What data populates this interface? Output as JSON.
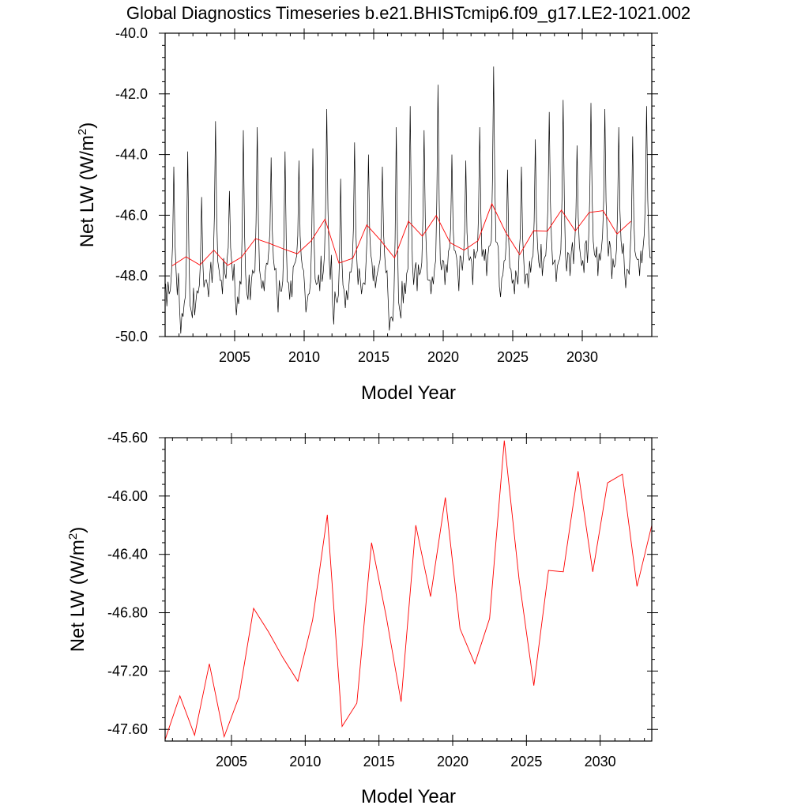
{
  "figure": {
    "title": "Global Diagnostics Timeseries b.e21.BHISTcmip6.f09_g17.LE2-1021.002",
    "colors": {
      "monthly": "#000000",
      "annual": "#ff0000"
    }
  },
  "chart_data": [
    {
      "type": "line",
      "name": "monthly-and-annual-netlw",
      "xlabel": "Model Year",
      "ylabel_main": "Net LW (W/m",
      "ylabel_sup": "2",
      "ylabel_end": ")",
      "xlim": [
        2000,
        2035
      ],
      "ylim": [
        -50.0,
        -40.0
      ],
      "xticks": [
        2005,
        2010,
        2015,
        2020,
        2025,
        2030
      ],
      "xtick_labels": [
        "2005",
        "2010",
        "2015",
        "2020",
        "2025",
        "2030"
      ],
      "yticks": [
        -50.0,
        -48.0,
        -46.0,
        -44.0,
        -42.0,
        -40.0
      ],
      "ytick_labels": [
        "-50.0",
        "-48.0",
        "-46.0",
        "-44.0",
        "-42.0",
        "-40.0"
      ],
      "series": [
        {
          "name": "monthly",
          "color": "#000000",
          "seasonal_peaks": {
            "years": [
              2000,
              2001,
              2002,
              2003,
              2004,
              2005,
              2006,
              2007,
              2008,
              2009,
              2010,
              2011,
              2012,
              2013,
              2014,
              2015,
              2016,
              2017,
              2018,
              2019,
              2020,
              2021,
              2022,
              2023,
              2024,
              2025,
              2026,
              2027,
              2028,
              2029,
              2030,
              2031,
              2032,
              2033,
              2034
            ],
            "max": [
              -44.4,
              -43.9,
              -45.4,
              -42.9,
              -45.2,
              -43.2,
              -43.1,
              -44.1,
              -43.9,
              -44.2,
              -43.8,
              -42.5,
              -44.8,
              -43.6,
              -44.0,
              -44.4,
              -43.1,
              -42.4,
              -43.2,
              -41.7,
              -44.0,
              -44.2,
              -43.1,
              -41.1,
              -44.5,
              -44.4,
              -43.5,
              -42.6,
              -42.2,
              -43.7,
              -42.3,
              -42.5,
              -43.1,
              -43.4,
              -42.4
            ],
            "min": [
              -49.0,
              -49.9,
              -49.3,
              -48.7,
              -48.6,
              -49.3,
              -48.8,
              -48.5,
              -49.2,
              -48.7,
              -49.2,
              -48.5,
              -49.6,
              -48.8,
              -48.6,
              -48.4,
              -49.8,
              -48.9,
              -48.5,
              -48.6,
              -48.3,
              -48.5,
              -48.3,
              -48.0,
              -48.7,
              -48.6,
              -48.4,
              -48.0,
              -48.2,
              -48.0,
              -47.9,
              -48.0,
              -48.1,
              -48.4,
              -48.0
            ]
          }
        },
        {
          "name": "annual",
          "color": "#ff0000",
          "x": [
            2000.5,
            2001.5,
            2002.5,
            2003.5,
            2004.5,
            2005.5,
            2006.5,
            2007.5,
            2008.5,
            2009.5,
            2010.5,
            2011.5,
            2012.5,
            2013.5,
            2014.5,
            2015.5,
            2016.5,
            2017.5,
            2018.5,
            2019.5,
            2020.5,
            2021.5,
            2022.5,
            2023.5,
            2024.5,
            2025.5,
            2026.5,
            2027.5,
            2028.5,
            2029.5,
            2030.5,
            2031.5,
            2032.5,
            2033.5
          ],
          "values": [
            -47.67,
            -47.37,
            -47.64,
            -47.15,
            -47.65,
            -47.38,
            -46.77,
            -46.93,
            -47.11,
            -47.27,
            -46.85,
            -46.13,
            -47.58,
            -47.42,
            -46.32,
            -46.83,
            -47.41,
            -46.2,
            -46.69,
            -46.01,
            -46.91,
            -47.15,
            -46.84,
            -45.62,
            -46.57,
            -47.3,
            -46.51,
            -46.52,
            -45.83,
            -46.52,
            -45.91,
            -45.85,
            -46.62,
            -46.2
          ]
        }
      ]
    },
    {
      "type": "line",
      "name": "annual-netlw",
      "xlabel": "Model Year",
      "ylabel_main": "Net LW (W/m",
      "ylabel_sup": "2",
      "ylabel_end": ")",
      "xlim": [
        2000.5,
        2033.5
      ],
      "ylim": [
        -47.68,
        -45.6
      ],
      "xticks": [
        2005,
        2010,
        2015,
        2020,
        2025,
        2030
      ],
      "xtick_labels": [
        "2005",
        "2010",
        "2015",
        "2020",
        "2025",
        "2030"
      ],
      "yticks": [
        -47.6,
        -47.2,
        -46.8,
        -46.4,
        -46.0,
        -45.6
      ],
      "ytick_labels": [
        "-47.60",
        "-47.20",
        "-46.80",
        "-46.40",
        "-46.00",
        "-45.60"
      ],
      "series": [
        {
          "name": "annual",
          "color": "#ff0000",
          "x": [
            2000.5,
            2001.5,
            2002.5,
            2003.5,
            2004.5,
            2005.5,
            2006.5,
            2007.5,
            2008.5,
            2009.5,
            2010.5,
            2011.5,
            2012.5,
            2013.5,
            2014.5,
            2015.5,
            2016.5,
            2017.5,
            2018.5,
            2019.5,
            2020.5,
            2021.5,
            2022.5,
            2023.5,
            2024.5,
            2025.5,
            2026.5,
            2027.5,
            2028.5,
            2029.5,
            2030.5,
            2031.5,
            2032.5,
            2033.5
          ],
          "values": [
            -47.67,
            -47.37,
            -47.64,
            -47.15,
            -47.65,
            -47.38,
            -46.77,
            -46.93,
            -47.11,
            -47.27,
            -46.85,
            -46.13,
            -47.58,
            -47.42,
            -46.32,
            -46.83,
            -47.41,
            -46.2,
            -46.69,
            -46.01,
            -46.91,
            -47.15,
            -46.84,
            -45.62,
            -46.57,
            -47.3,
            -46.51,
            -46.52,
            -45.83,
            -46.52,
            -45.91,
            -45.85,
            -46.62,
            -46.2
          ]
        }
      ]
    }
  ]
}
